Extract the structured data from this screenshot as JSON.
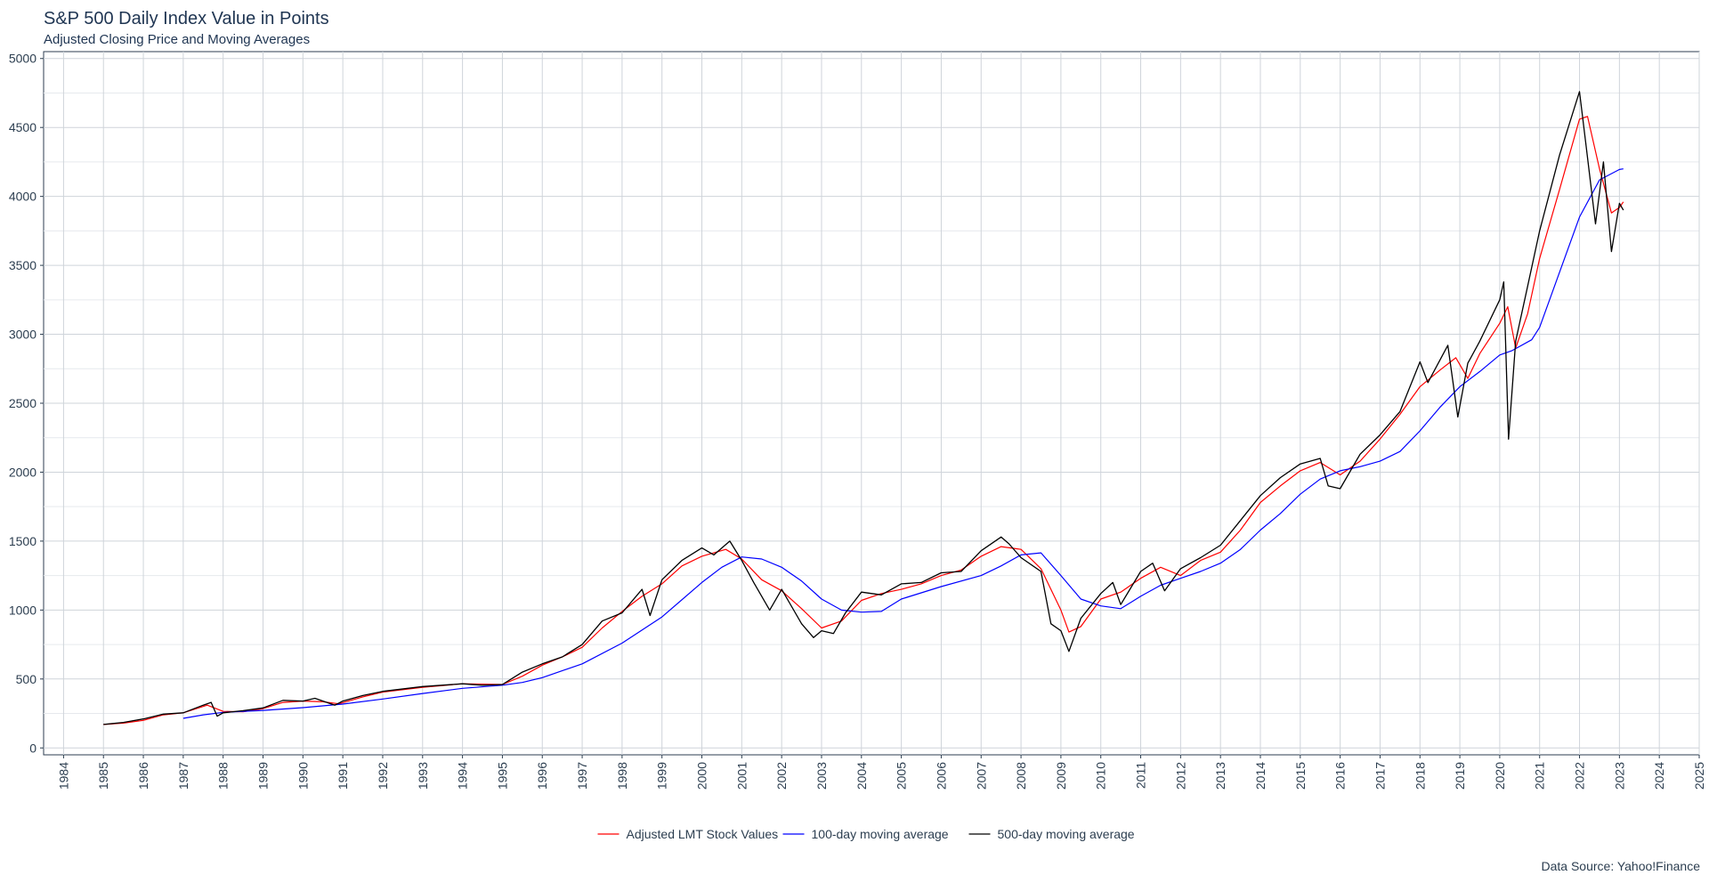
{
  "chart_data": {
    "type": "line",
    "title": "S&P 500 Daily Index Value in Points",
    "subtitle": "Adjusted Closing Price and Moving Averages",
    "caption": "Data Source: Yahoo!Finance",
    "xlabel": "",
    "ylabel": "",
    "xlim": [
      1983.5,
      2025
    ],
    "ylim": [
      -50,
      5050
    ],
    "x_ticks": [
      "1984",
      "1985",
      "1986",
      "1987",
      "1988",
      "1989",
      "1990",
      "1991",
      "1992",
      "1993",
      "1994",
      "1995",
      "1996",
      "1997",
      "1998",
      "1999",
      "2000",
      "2001",
      "2002",
      "2003",
      "2004",
      "2005",
      "2006",
      "2007",
      "2008",
      "2009",
      "2010",
      "2011",
      "2012",
      "2013",
      "2014",
      "2015",
      "2016",
      "2017",
      "2018",
      "2019",
      "2020",
      "2021",
      "2022",
      "2023",
      "2024",
      "2025"
    ],
    "y_ticks": [
      "0",
      "500",
      "1000",
      "1500",
      "2000",
      "2500",
      "3000",
      "3500",
      "4000",
      "4500",
      "5000"
    ],
    "grid": true,
    "legend_position": "bottom",
    "series": [
      {
        "name": "Adjusted LMT Stock Values",
        "color": "#ff0000",
        "points": [
          [
            1985.0,
            170
          ],
          [
            1985.5,
            180
          ],
          [
            1986.0,
            200
          ],
          [
            1986.5,
            240
          ],
          [
            1987.0,
            255
          ],
          [
            1987.6,
            310
          ],
          [
            1988.0,
            265
          ],
          [
            1988.5,
            262
          ],
          [
            1989.0,
            285
          ],
          [
            1989.5,
            330
          ],
          [
            1990.0,
            340
          ],
          [
            1990.5,
            335
          ],
          [
            1990.9,
            320
          ],
          [
            1991.5,
            370
          ],
          [
            1992.0,
            405
          ],
          [
            1993.0,
            440
          ],
          [
            1994.0,
            465
          ],
          [
            1995.0,
            460
          ],
          [
            1995.5,
            520
          ],
          [
            1996.0,
            600
          ],
          [
            1996.5,
            660
          ],
          [
            1997.0,
            730
          ],
          [
            1997.5,
            870
          ],
          [
            1998.0,
            990
          ],
          [
            1998.5,
            1100
          ],
          [
            1999.0,
            1190
          ],
          [
            1999.5,
            1320
          ],
          [
            2000.0,
            1390
          ],
          [
            2000.6,
            1440
          ],
          [
            2001.0,
            1370
          ],
          [
            2001.5,
            1220
          ],
          [
            2002.0,
            1140
          ],
          [
            2002.5,
            1010
          ],
          [
            2003.0,
            870
          ],
          [
            2003.5,
            920
          ],
          [
            2004.0,
            1070
          ],
          [
            2004.5,
            1120
          ],
          [
            2005.0,
            1150
          ],
          [
            2005.5,
            1190
          ],
          [
            2006.0,
            1250
          ],
          [
            2006.5,
            1290
          ],
          [
            2007.0,
            1390
          ],
          [
            2007.5,
            1460
          ],
          [
            2008.0,
            1440
          ],
          [
            2008.5,
            1300
          ],
          [
            2009.0,
            1000
          ],
          [
            2009.2,
            840
          ],
          [
            2009.5,
            880
          ],
          [
            2010.0,
            1080
          ],
          [
            2010.5,
            1130
          ],
          [
            2011.0,
            1230
          ],
          [
            2011.5,
            1310
          ],
          [
            2012.0,
            1250
          ],
          [
            2012.5,
            1360
          ],
          [
            2013.0,
            1420
          ],
          [
            2013.5,
            1580
          ],
          [
            2014.0,
            1780
          ],
          [
            2014.5,
            1900
          ],
          [
            2015.0,
            2010
          ],
          [
            2015.5,
            2070
          ],
          [
            2016.0,
            1980
          ],
          [
            2016.5,
            2080
          ],
          [
            2017.0,
            2240
          ],
          [
            2017.5,
            2420
          ],
          [
            2018.0,
            2620
          ],
          [
            2018.5,
            2740
          ],
          [
            2018.9,
            2830
          ],
          [
            2019.2,
            2680
          ],
          [
            2019.5,
            2860
          ],
          [
            2020.0,
            3080
          ],
          [
            2020.2,
            3200
          ],
          [
            2020.4,
            2900
          ],
          [
            2020.7,
            3150
          ],
          [
            2021.0,
            3550
          ],
          [
            2021.5,
            4050
          ],
          [
            2022.0,
            4560
          ],
          [
            2022.2,
            4580
          ],
          [
            2022.5,
            4200
          ],
          [
            2022.8,
            3880
          ],
          [
            2023.0,
            3920
          ],
          [
            2023.1,
            3960
          ]
        ]
      },
      {
        "name": "100-day moving average",
        "color": "#0000ff",
        "points": [
          [
            1987.0,
            215
          ],
          [
            1987.5,
            240
          ],
          [
            1988.0,
            258
          ],
          [
            1989.0,
            272
          ],
          [
            1990.0,
            292
          ],
          [
            1991.0,
            318
          ],
          [
            1992.0,
            355
          ],
          [
            1993.0,
            395
          ],
          [
            1994.0,
            432
          ],
          [
            1995.0,
            455
          ],
          [
            1995.5,
            475
          ],
          [
            1996.0,
            510
          ],
          [
            1997.0,
            610
          ],
          [
            1998.0,
            760
          ],
          [
            1999.0,
            950
          ],
          [
            2000.0,
            1200
          ],
          [
            2000.5,
            1310
          ],
          [
            2001.0,
            1385
          ],
          [
            2001.5,
            1370
          ],
          [
            2002.0,
            1310
          ],
          [
            2002.5,
            1210
          ],
          [
            2003.0,
            1080
          ],
          [
            2003.5,
            1000
          ],
          [
            2004.0,
            985
          ],
          [
            2004.5,
            990
          ],
          [
            2005.0,
            1080
          ],
          [
            2006.0,
            1170
          ],
          [
            2007.0,
            1250
          ],
          [
            2007.5,
            1320
          ],
          [
            2008.0,
            1400
          ],
          [
            2008.5,
            1415
          ],
          [
            2009.0,
            1250
          ],
          [
            2009.5,
            1080
          ],
          [
            2010.0,
            1030
          ],
          [
            2010.5,
            1010
          ],
          [
            2011.0,
            1100
          ],
          [
            2011.5,
            1180
          ],
          [
            2012.0,
            1230
          ],
          [
            2012.5,
            1280
          ],
          [
            2013.0,
            1340
          ],
          [
            2013.5,
            1440
          ],
          [
            2014.0,
            1580
          ],
          [
            2014.5,
            1700
          ],
          [
            2015.0,
            1840
          ],
          [
            2015.5,
            1950
          ],
          [
            2016.0,
            2010
          ],
          [
            2016.5,
            2040
          ],
          [
            2017.0,
            2080
          ],
          [
            2017.5,
            2150
          ],
          [
            2018.0,
            2300
          ],
          [
            2018.5,
            2470
          ],
          [
            2019.0,
            2620
          ],
          [
            2019.5,
            2730
          ],
          [
            2020.0,
            2850
          ],
          [
            2020.3,
            2880
          ],
          [
            2020.8,
            2960
          ],
          [
            2021.0,
            3050
          ],
          [
            2021.5,
            3450
          ],
          [
            2022.0,
            3850
          ],
          [
            2022.5,
            4120
          ],
          [
            2023.0,
            4195
          ],
          [
            2023.1,
            4200
          ]
        ]
      },
      {
        "name": "500-day moving average",
        "color": "#000000",
        "points": [
          [
            1985.0,
            170
          ],
          [
            1985.5,
            185
          ],
          [
            1986.0,
            210
          ],
          [
            1986.5,
            245
          ],
          [
            1987.0,
            255
          ],
          [
            1987.5,
            310
          ],
          [
            1987.7,
            330
          ],
          [
            1987.85,
            230
          ],
          [
            1988.0,
            255
          ],
          [
            1988.5,
            270
          ],
          [
            1989.0,
            290
          ],
          [
            1989.5,
            345
          ],
          [
            1990.0,
            340
          ],
          [
            1990.3,
            360
          ],
          [
            1990.8,
            310
          ],
          [
            1991.0,
            340
          ],
          [
            1991.5,
            380
          ],
          [
            1992.0,
            410
          ],
          [
            1993.0,
            445
          ],
          [
            1994.0,
            465
          ],
          [
            1994.5,
            455
          ],
          [
            1995.0,
            460
          ],
          [
            1995.5,
            550
          ],
          [
            1996.0,
            610
          ],
          [
            1996.5,
            660
          ],
          [
            1997.0,
            750
          ],
          [
            1997.5,
            920
          ],
          [
            1998.0,
            980
          ],
          [
            1998.5,
            1150
          ],
          [
            1998.7,
            960
          ],
          [
            1999.0,
            1220
          ],
          [
            1999.5,
            1360
          ],
          [
            2000.0,
            1450
          ],
          [
            2000.3,
            1400
          ],
          [
            2000.7,
            1500
          ],
          [
            2001.0,
            1360
          ],
          [
            2001.3,
            1200
          ],
          [
            2001.7,
            1000
          ],
          [
            2002.0,
            1150
          ],
          [
            2002.5,
            900
          ],
          [
            2002.8,
            800
          ],
          [
            2003.0,
            850
          ],
          [
            2003.3,
            830
          ],
          [
            2003.6,
            980
          ],
          [
            2004.0,
            1130
          ],
          [
            2004.5,
            1110
          ],
          [
            2005.0,
            1190
          ],
          [
            2005.5,
            1200
          ],
          [
            2006.0,
            1270
          ],
          [
            2006.5,
            1280
          ],
          [
            2007.0,
            1430
          ],
          [
            2007.5,
            1530
          ],
          [
            2007.7,
            1480
          ],
          [
            2008.0,
            1380
          ],
          [
            2008.5,
            1280
          ],
          [
            2008.75,
            900
          ],
          [
            2009.0,
            850
          ],
          [
            2009.2,
            700
          ],
          [
            2009.5,
            940
          ],
          [
            2010.0,
            1120
          ],
          [
            2010.3,
            1200
          ],
          [
            2010.5,
            1040
          ],
          [
            2011.0,
            1280
          ],
          [
            2011.3,
            1340
          ],
          [
            2011.6,
            1140
          ],
          [
            2012.0,
            1300
          ],
          [
            2012.5,
            1380
          ],
          [
            2013.0,
            1470
          ],
          [
            2013.5,
            1650
          ],
          [
            2014.0,
            1830
          ],
          [
            2014.5,
            1960
          ],
          [
            2015.0,
            2060
          ],
          [
            2015.5,
            2100
          ],
          [
            2015.7,
            1900
          ],
          [
            2016.0,
            1880
          ],
          [
            2016.5,
            2130
          ],
          [
            2017.0,
            2270
          ],
          [
            2017.5,
            2440
          ],
          [
            2018.0,
            2800
          ],
          [
            2018.2,
            2650
          ],
          [
            2018.7,
            2920
          ],
          [
            2018.95,
            2400
          ],
          [
            2019.2,
            2790
          ],
          [
            2019.5,
            2950
          ],
          [
            2020.0,
            3250
          ],
          [
            2020.1,
            3380
          ],
          [
            2020.22,
            2240
          ],
          [
            2020.4,
            2950
          ],
          [
            2020.7,
            3350
          ],
          [
            2021.0,
            3750
          ],
          [
            2021.5,
            4300
          ],
          [
            2022.0,
            4760
          ],
          [
            2022.15,
            4400
          ],
          [
            2022.4,
            3800
          ],
          [
            2022.6,
            4250
          ],
          [
            2022.8,
            3600
          ],
          [
            2023.0,
            3950
          ],
          [
            2023.1,
            3900
          ]
        ]
      }
    ]
  }
}
